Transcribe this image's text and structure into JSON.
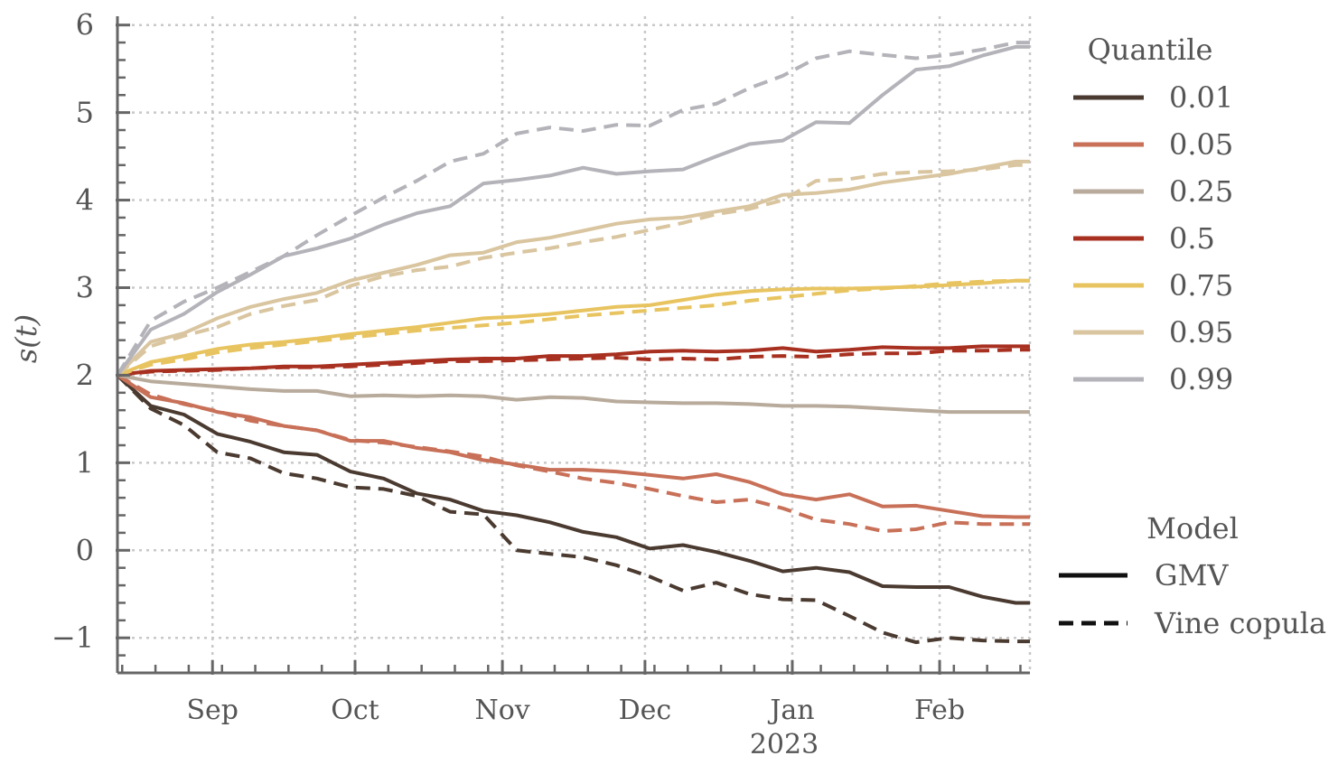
{
  "chart_data": {
    "type": "line",
    "ylabel": "s(t)",
    "ylim": [
      -1.4,
      6.1
    ],
    "xlim": [
      "2022-08-12",
      "2023-02-20"
    ],
    "grid": true,
    "x_ticks": [
      {
        "date": "2022-09-01",
        "label": "Sep"
      },
      {
        "date": "2022-10-01",
        "label": "Oct"
      },
      {
        "date": "2022-11-01",
        "label": "Nov"
      },
      {
        "date": "2022-12-01",
        "label": "Dec"
      },
      {
        "date": "2023-01-01",
        "label": "Jan"
      },
      {
        "date": "2023-02-01",
        "label": "Feb"
      }
    ],
    "x_year_label": "2023",
    "y_ticks": [
      -1,
      0,
      1,
      2,
      3,
      4,
      5,
      6
    ],
    "x": [
      "2022-08-12",
      "2022-08-19",
      "2022-08-26",
      "2022-09-02",
      "2022-09-09",
      "2022-09-16",
      "2022-09-23",
      "2022-09-30",
      "2022-10-07",
      "2022-10-14",
      "2022-10-21",
      "2022-10-28",
      "2022-11-04",
      "2022-11-11",
      "2022-11-18",
      "2022-11-25",
      "2022-12-02",
      "2022-12-09",
      "2022-12-16",
      "2022-12-23",
      "2022-12-30",
      "2023-01-06",
      "2023-01-13",
      "2023-01-20",
      "2023-01-27",
      "2023-02-03",
      "2023-02-10",
      "2023-02-17",
      "2023-02-20"
    ],
    "legend": {
      "quantile_title": "Quantile",
      "model_title": "Model",
      "placement": "right",
      "models": [
        {
          "name": "GMV",
          "style": "solid"
        },
        {
          "name": "Vine copula",
          "style": "dashed"
        }
      ]
    },
    "series": [
      {
        "name": "0.01",
        "color": "#4a3a30",
        "gmv": [
          2.0,
          1.65,
          1.55,
          1.33,
          1.24,
          1.12,
          1.09,
          0.9,
          0.82,
          0.65,
          0.58,
          0.45,
          0.4,
          0.32,
          0.21,
          0.15,
          0.02,
          0.06,
          -0.02,
          -0.12,
          -0.24,
          -0.2,
          -0.25,
          -0.41,
          -0.42,
          -0.42,
          -0.53,
          -0.6,
          -0.6
        ],
        "vine": [
          2.0,
          1.62,
          1.43,
          1.12,
          1.05,
          0.88,
          0.82,
          0.72,
          0.7,
          0.62,
          0.44,
          0.41,
          0.0,
          -0.04,
          -0.08,
          -0.17,
          -0.3,
          -0.46,
          -0.37,
          -0.5,
          -0.56,
          -0.57,
          -0.75,
          -0.94,
          -1.05,
          -1.0,
          -1.03,
          -1.04,
          -1.04
        ]
      },
      {
        "name": "0.05",
        "color": "#c87058",
        "gmv": [
          2.0,
          1.75,
          1.68,
          1.58,
          1.52,
          1.42,
          1.37,
          1.25,
          1.25,
          1.17,
          1.12,
          1.03,
          0.98,
          0.92,
          0.92,
          0.9,
          0.86,
          0.82,
          0.87,
          0.78,
          0.64,
          0.58,
          0.64,
          0.5,
          0.51,
          0.45,
          0.39,
          0.38,
          0.38
        ],
        "vine": [
          2.0,
          1.78,
          1.67,
          1.59,
          1.48,
          1.42,
          1.37,
          1.26,
          1.23,
          1.18,
          1.13,
          1.07,
          0.97,
          0.9,
          0.82,
          0.77,
          0.7,
          0.62,
          0.55,
          0.58,
          0.48,
          0.35,
          0.3,
          0.22,
          0.24,
          0.32,
          0.3,
          0.3,
          0.3
        ]
      },
      {
        "name": "0.25",
        "color": "#b8ab9c",
        "gmv": [
          2.0,
          1.93,
          1.9,
          1.87,
          1.84,
          1.82,
          1.82,
          1.76,
          1.77,
          1.76,
          1.77,
          1.76,
          1.72,
          1.75,
          1.74,
          1.7,
          1.69,
          1.68,
          1.68,
          1.67,
          1.65,
          1.65,
          1.64,
          1.62,
          1.6,
          1.58,
          1.58,
          1.58,
          1.58
        ]
      },
      {
        "name": "0.5",
        "color": "#a83020",
        "gmv": [
          2.0,
          2.05,
          2.06,
          2.07,
          2.08,
          2.1,
          2.1,
          2.12,
          2.14,
          2.16,
          2.18,
          2.19,
          2.19,
          2.22,
          2.22,
          2.24,
          2.27,
          2.28,
          2.27,
          2.28,
          2.31,
          2.27,
          2.29,
          2.32,
          2.31,
          2.31,
          2.33,
          2.33,
          2.33
        ],
        "vine": [
          2.0,
          2.04,
          2.05,
          2.06,
          2.08,
          2.09,
          2.09,
          2.1,
          2.12,
          2.14,
          2.16,
          2.16,
          2.17,
          2.18,
          2.19,
          2.2,
          2.18,
          2.19,
          2.18,
          2.21,
          2.22,
          2.21,
          2.24,
          2.25,
          2.25,
          2.28,
          2.28,
          2.29,
          2.29
        ]
      },
      {
        "name": "0.75",
        "color": "#e8c460",
        "gmv": [
          2.0,
          2.15,
          2.22,
          2.3,
          2.35,
          2.38,
          2.42,
          2.47,
          2.51,
          2.55,
          2.6,
          2.65,
          2.67,
          2.7,
          2.74,
          2.78,
          2.8,
          2.86,
          2.92,
          2.96,
          2.98,
          2.99,
          2.99,
          3.0,
          3.01,
          3.03,
          3.05,
          3.08,
          3.08
        ],
        "vine": [
          2.0,
          2.12,
          2.18,
          2.26,
          2.31,
          2.35,
          2.39,
          2.43,
          2.47,
          2.51,
          2.54,
          2.57,
          2.6,
          2.64,
          2.68,
          2.71,
          2.74,
          2.77,
          2.8,
          2.85,
          2.89,
          2.93,
          2.97,
          2.99,
          3.02,
          3.05,
          3.07,
          3.08,
          3.08
        ]
      },
      {
        "name": "0.95",
        "color": "#d9c59f",
        "gmv": [
          2.0,
          2.38,
          2.48,
          2.65,
          2.78,
          2.87,
          2.94,
          3.08,
          3.17,
          3.26,
          3.37,
          3.4,
          3.52,
          3.57,
          3.65,
          3.73,
          3.78,
          3.8,
          3.87,
          3.93,
          4.06,
          4.08,
          4.12,
          4.2,
          4.25,
          4.3,
          4.37,
          4.44,
          4.44
        ],
        "vine": [
          2.0,
          2.33,
          2.45,
          2.55,
          2.7,
          2.79,
          2.86,
          3.02,
          3.13,
          3.2,
          3.24,
          3.34,
          3.4,
          3.45,
          3.52,
          3.58,
          3.66,
          3.74,
          3.84,
          3.9,
          4.0,
          4.22,
          4.24,
          4.3,
          4.32,
          4.33,
          4.35,
          4.4,
          4.4
        ]
      },
      {
        "name": "0.99",
        "color": "#b4b3b9",
        "gmv": [
          2.0,
          2.52,
          2.7,
          2.95,
          3.15,
          3.36,
          3.45,
          3.56,
          3.72,
          3.85,
          3.93,
          4.19,
          4.23,
          4.28,
          4.37,
          4.3,
          4.33,
          4.35,
          4.5,
          4.64,
          4.68,
          4.89,
          4.88,
          5.2,
          5.49,
          5.53,
          5.65,
          5.75,
          5.75
        ],
        "vine": [
          2.0,
          2.62,
          2.84,
          3.0,
          3.18,
          3.36,
          3.6,
          3.82,
          4.03,
          4.22,
          4.44,
          4.53,
          4.76,
          4.83,
          4.79,
          4.86,
          4.85,
          5.03,
          5.1,
          5.28,
          5.42,
          5.62,
          5.7,
          5.66,
          5.62,
          5.66,
          5.72,
          5.8,
          5.8
        ]
      }
    ]
  }
}
